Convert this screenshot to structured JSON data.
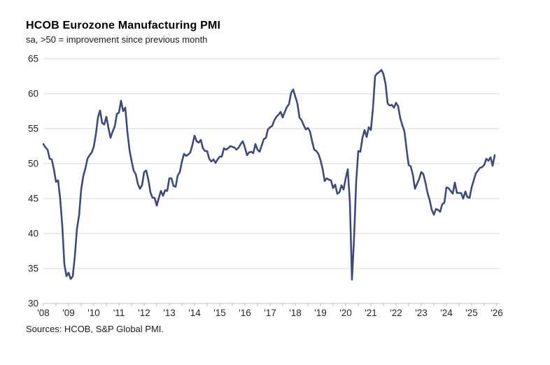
{
  "header": {
    "title": "HCOB Eurozone Manufacturing PMI",
    "subtitle": "sa, >50 = improvement since previous month"
  },
  "footer": {
    "source": "Sources: HCOB, S&P Global PMI."
  },
  "chart_data": {
    "type": "line",
    "title": "HCOB Eurozone Manufacturing PMI",
    "subtitle": "sa, >50 = improvement since previous month",
    "source": "Sources: HCOB, S&P Global PMI.",
    "xlabel": "",
    "ylabel": "",
    "ylim": [
      30,
      65
    ],
    "ytick_step": 5,
    "ytick_labels": [
      "30",
      "35",
      "40",
      "45",
      "50",
      "55",
      "60",
      "65"
    ],
    "xtick_labels": [
      "'08",
      "'09",
      "'10",
      "'11",
      "'12",
      "'13",
      "'14",
      "'15",
      "'16",
      "'17",
      "'18",
      "'19",
      "'20",
      "'21",
      "'22",
      "'23",
      "'24",
      "'25",
      "'26"
    ],
    "x_start": "2008-01",
    "frequency": "monthly",
    "grid": "horizontal",
    "legend_position": "none",
    "line_color": "#3e4a7c",
    "grid_color": "#d9d9d9",
    "axis_color": "#bfbfbf",
    "text_color": "#262626",
    "series": [
      {
        "name": "HCOB Eurozone Manufacturing PMI (sa)",
        "values": [
          52.8,
          52.3,
          52.0,
          50.7,
          50.6,
          49.2,
          47.4,
          47.6,
          45.0,
          41.1,
          35.6,
          33.9,
          34.4,
          33.5,
          33.9,
          36.8,
          40.7,
          42.6,
          46.3,
          48.2,
          49.3,
          50.7,
          51.2,
          51.6,
          52.4,
          54.2,
          56.6,
          57.6,
          55.8,
          55.6,
          56.7,
          55.1,
          53.7,
          54.6,
          55.3,
          57.1,
          57.3,
          59.0,
          57.5,
          58.0,
          54.6,
          52.0,
          50.4,
          49.0,
          48.5,
          47.1,
          46.4,
          46.9,
          48.8,
          49.0,
          47.7,
          45.9,
          45.1,
          45.1,
          44.0,
          45.1,
          46.1,
          45.4,
          46.2,
          46.1,
          47.9,
          47.9,
          46.8,
          46.7,
          48.3,
          48.8,
          50.3,
          51.4,
          51.1,
          51.3,
          51.6,
          52.7,
          54.0,
          53.2,
          53.0,
          53.4,
          52.2,
          51.8,
          51.8,
          50.7,
          50.3,
          50.6,
          50.1,
          50.6,
          51.0,
          51.0,
          52.2,
          52.0,
          52.2,
          52.5,
          52.4,
          52.3,
          52.0,
          52.3,
          52.8,
          53.2,
          52.3,
          51.2,
          51.6,
          51.7,
          51.5,
          52.8,
          52.0,
          51.7,
          52.6,
          53.5,
          53.7,
          54.9,
          55.2,
          55.4,
          56.2,
          56.7,
          57.0,
          57.4,
          56.6,
          57.4,
          58.1,
          58.5,
          60.1,
          60.6,
          59.6,
          58.6,
          56.6,
          56.2,
          55.5,
          54.9,
          55.1,
          54.6,
          53.2,
          52.0,
          51.8,
          51.4,
          50.5,
          49.3,
          47.5,
          47.9,
          47.7,
          47.6,
          46.5,
          47.0,
          45.7,
          45.9,
          46.9,
          46.3,
          47.9,
          49.2,
          44.5,
          33.4,
          39.4,
          47.4,
          51.8,
          51.7,
          53.7,
          54.8,
          53.8,
          55.2,
          54.8,
          57.9,
          62.5,
          62.9,
          63.1,
          63.4,
          62.8,
          61.4,
          58.6,
          58.3,
          58.4,
          58.0,
          58.7,
          58.2,
          56.5,
          55.5,
          54.6,
          52.1,
          49.8,
          49.6,
          48.4,
          46.4,
          47.1,
          47.8,
          48.8,
          48.5,
          47.3,
          45.8,
          44.8,
          43.4,
          42.7,
          43.5,
          43.4,
          43.1,
          44.2,
          44.4,
          46.6,
          46.5,
          46.1,
          45.7,
          47.3,
          45.8,
          45.8,
          45.8,
          45.0,
          46.0,
          45.2,
          45.1,
          46.6,
          47.6,
          48.6,
          49.0,
          49.4,
          49.5,
          49.8,
          50.7,
          50.4,
          50.9,
          49.7,
          51.2
        ]
      }
    ]
  }
}
